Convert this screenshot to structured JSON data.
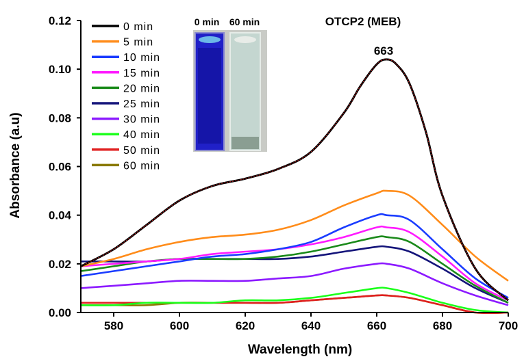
{
  "chart_data": {
    "type": "line",
    "title": "OTCP2 (MEB)",
    "xlabel": "Wavelength (nm)",
    "ylabel": "Absorbance (a.u)",
    "xlim": [
      570,
      700
    ],
    "ylim": [
      0,
      0.12
    ],
    "xticks": [
      "580",
      "600",
      "620",
      "640",
      "660",
      "680",
      "700"
    ],
    "yticks": [
      "0.00",
      "0.02",
      "0.04",
      "0.06",
      "0.08",
      "0.10",
      "0.12"
    ],
    "peak_annotation": {
      "label": "663",
      "x": 663,
      "y": 0.108
    },
    "inset_labels": [
      "0 min",
      "60 min"
    ],
    "legend_position": "top-left",
    "series": [
      {
        "name": "0 min",
        "color": "#000000",
        "x": [
          570,
          580,
          590,
          600,
          610,
          620,
          630,
          640,
          650,
          655,
          660,
          663,
          666,
          670,
          675,
          680,
          690,
          700
        ],
        "y": [
          0.019,
          0.026,
          0.036,
          0.046,
          0.052,
          0.055,
          0.059,
          0.066,
          0.082,
          0.093,
          0.102,
          0.104,
          0.102,
          0.094,
          0.074,
          0.048,
          0.018,
          0.005
        ]
      },
      {
        "name": "5 min",
        "color": "#ff8c1a",
        "x": [
          570,
          580,
          590,
          600,
          610,
          620,
          630,
          640,
          650,
          660,
          663,
          670,
          680,
          690,
          700
        ],
        "y": [
          0.019,
          0.022,
          0.026,
          0.029,
          0.031,
          0.032,
          0.034,
          0.038,
          0.044,
          0.049,
          0.05,
          0.048,
          0.036,
          0.023,
          0.013
        ]
      },
      {
        "name": "10 min",
        "color": "#1a3cff",
        "x": [
          570,
          580,
          590,
          600,
          610,
          620,
          630,
          640,
          650,
          660,
          663,
          670,
          680,
          690,
          700
        ],
        "y": [
          0.015,
          0.017,
          0.019,
          0.021,
          0.023,
          0.024,
          0.026,
          0.029,
          0.035,
          0.04,
          0.04,
          0.038,
          0.026,
          0.014,
          0.006
        ]
      },
      {
        "name": "15 min",
        "color": "#ff1aff",
        "x": [
          570,
          580,
          590,
          600,
          610,
          620,
          630,
          640,
          650,
          660,
          663,
          670,
          680,
          690,
          700
        ],
        "y": [
          0.019,
          0.02,
          0.021,
          0.022,
          0.024,
          0.025,
          0.026,
          0.028,
          0.031,
          0.035,
          0.035,
          0.033,
          0.023,
          0.012,
          0.005
        ]
      },
      {
        "name": "20 min",
        "color": "#1a8a1a",
        "x": [
          570,
          580,
          590,
          600,
          610,
          620,
          630,
          640,
          650,
          660,
          663,
          670,
          680,
          690,
          700
        ],
        "y": [
          0.017,
          0.019,
          0.021,
          0.022,
          0.022,
          0.022,
          0.023,
          0.025,
          0.028,
          0.031,
          0.031,
          0.029,
          0.02,
          0.011,
          0.004
        ]
      },
      {
        "name": "25 min",
        "color": "#14147a",
        "x": [
          570,
          580,
          590,
          600,
          610,
          620,
          630,
          640,
          650,
          660,
          663,
          670,
          680,
          690,
          700
        ],
        "y": [
          0.021,
          0.021,
          0.021,
          0.022,
          0.022,
          0.022,
          0.022,
          0.023,
          0.025,
          0.027,
          0.027,
          0.025,
          0.018,
          0.01,
          0.004
        ]
      },
      {
        "name": "30 min",
        "color": "#8c1aff",
        "x": [
          570,
          580,
          590,
          600,
          610,
          620,
          630,
          640,
          650,
          660,
          663,
          670,
          680,
          690,
          700
        ],
        "y": [
          0.01,
          0.011,
          0.012,
          0.013,
          0.013,
          0.013,
          0.014,
          0.015,
          0.018,
          0.02,
          0.02,
          0.018,
          0.012,
          0.007,
          0.003
        ]
      },
      {
        "name": "40 min",
        "color": "#1aff1a",
        "x": [
          570,
          580,
          590,
          600,
          610,
          620,
          630,
          640,
          650,
          660,
          663,
          670,
          680,
          690,
          700
        ],
        "y": [
          0.003,
          0.003,
          0.004,
          0.004,
          0.004,
          0.005,
          0.005,
          0.006,
          0.008,
          0.01,
          0.01,
          0.008,
          0.004,
          0.001,
          0.0
        ]
      },
      {
        "name": "50 min",
        "color": "#e02020",
        "x": [
          570,
          580,
          590,
          600,
          610,
          620,
          630,
          640,
          650,
          660,
          663,
          670,
          680,
          690,
          700
        ],
        "y": [
          0.004,
          0.004,
          0.004,
          0.004,
          0.004,
          0.004,
          0.004,
          0.005,
          0.006,
          0.007,
          0.007,
          0.006,
          0.003,
          0.0,
          0.0
        ]
      },
      {
        "name": "60 min",
        "color": "#8a7a00",
        "x": [
          570,
          580,
          590,
          600,
          610,
          620,
          630,
          640,
          650,
          660,
          663,
          670,
          680,
          690,
          700
        ],
        "y": [
          0.003,
          0.003,
          0.003,
          0.004,
          0.004,
          0.004,
          0.004,
          0.005,
          0.006,
          0.007,
          0.007,
          0.006,
          0.003,
          0.0,
          0.0
        ]
      }
    ]
  }
}
